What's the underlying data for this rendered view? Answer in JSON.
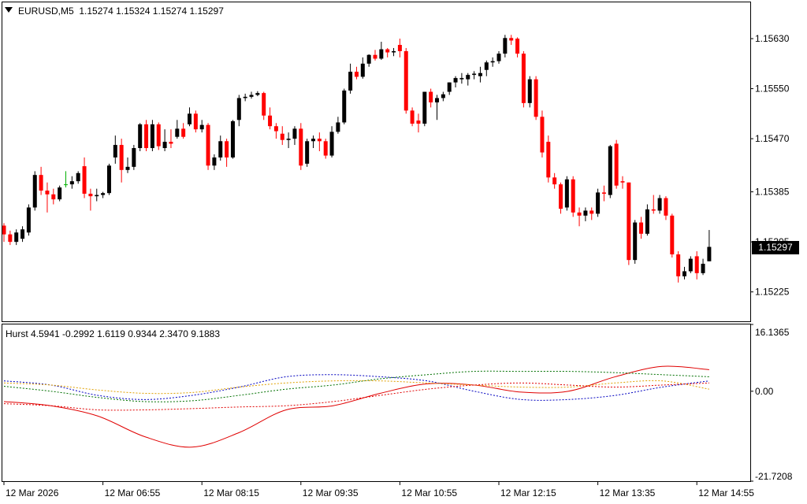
{
  "header": {
    "symbol_timeframe": "EURUSD,M5",
    "ohlc": "1.15274 1.15324 1.15274 1.15297",
    "indicator_label": "Hurst 4.5941 -0.2992 1.6119 0.9344 2.3470 9.1883"
  },
  "price_box": {
    "value": "1.15297",
    "number": 1.15297
  },
  "colors": {
    "bull": "#000000",
    "bear": "#ff0000",
    "doji": "#00b000",
    "grid_frame": "#000000"
  },
  "chart_data": [
    {
      "type": "candlestick",
      "title": "EURUSD,M5",
      "y_ticks": [
        "1.15630",
        "1.15550",
        "1.15470",
        "1.15385",
        "1.15305",
        "1.15225"
      ],
      "x_ticks": [
        "12 Mar 2026",
        "12 Mar 06:55",
        "12 Mar 08:15",
        "12 Mar 09:35",
        "12 Mar 10:55",
        "12 Mar 12:15",
        "12 Mar 13:35",
        "12 Mar 14:55"
      ],
      "ylim": [
        1.15178,
        1.15688
      ],
      "candles": [
        [
          1.15331,
          1.15335,
          1.15305,
          1.15317
        ],
        [
          1.15317,
          1.15323,
          1.153,
          1.15305
        ],
        [
          1.15305,
          1.15325,
          1.153,
          1.1532
        ],
        [
          1.1531,
          1.1533,
          1.15305,
          1.15325
        ],
        [
          1.1532,
          1.15365,
          1.15315,
          1.1536
        ],
        [
          1.1536,
          1.15418,
          1.15355,
          1.15412
        ],
        [
          1.15412,
          1.15425,
          1.1538,
          1.15387
        ],
        [
          1.15387,
          1.154,
          1.15352,
          1.15381
        ],
        [
          1.15381,
          1.1539,
          1.15365,
          1.15373
        ],
        [
          1.15373,
          1.15395,
          1.1537,
          1.15392
        ],
        [
          1.15397,
          1.15418,
          1.15392,
          1.15397
        ],
        [
          1.15397,
          1.1541,
          1.1539,
          1.15402
        ],
        [
          1.15402,
          1.15418,
          1.15398,
          1.15415
        ],
        [
          1.15426,
          1.1544,
          1.15375,
          1.15382
        ],
        [
          1.15382,
          1.1539,
          1.15355,
          1.15378
        ],
        [
          1.15378,
          1.1539,
          1.1537,
          1.1538
        ],
        [
          1.1538,
          1.15385,
          1.15375,
          1.15383
        ],
        [
          1.15383,
          1.1543,
          1.1538,
          1.15427
        ],
        [
          1.1544,
          1.15475,
          1.1543,
          1.1546
        ],
        [
          1.1546,
          1.1547,
          1.154,
          1.1542
        ],
        [
          1.1542,
          1.1544,
          1.15415,
          1.15425
        ],
        [
          1.15425,
          1.1546,
          1.1542,
          1.15455
        ],
        [
          1.15455,
          1.15495,
          1.1545,
          1.15493
        ],
        [
          1.15493,
          1.155,
          1.1545,
          1.15455
        ],
        [
          1.15455,
          1.155,
          1.1545,
          1.15493
        ],
        [
          1.15493,
          1.15496,
          1.15452,
          1.15458
        ],
        [
          1.15455,
          1.15485,
          1.1545,
          1.15465
        ],
        [
          1.15465,
          1.15485,
          1.15455,
          1.15462
        ],
        [
          1.15473,
          1.155,
          1.1547,
          1.15486
        ],
        [
          1.15486,
          1.15495,
          1.1547,
          1.15473
        ],
        [
          1.15493,
          1.1552,
          1.1549,
          1.1551
        ],
        [
          1.1551,
          1.15515,
          1.1548,
          1.15485
        ],
        [
          1.15485,
          1.155,
          1.1548,
          1.15492
        ],
        [
          1.15492,
          1.15495,
          1.1542,
          1.15427
        ],
        [
          1.15427,
          1.15445,
          1.1542,
          1.1544
        ],
        [
          1.1544,
          1.15475,
          1.15435,
          1.15466
        ],
        [
          1.15466,
          1.1547,
          1.15425,
          1.1544
        ],
        [
          1.1544,
          1.155,
          1.15438,
          1.15498
        ],
        [
          1.155,
          1.1554,
          1.1549,
          1.15535
        ],
        [
          1.15535,
          1.15542,
          1.1553,
          1.15537
        ],
        [
          1.15537,
          1.15545,
          1.15534,
          1.1554
        ],
        [
          1.1554,
          1.15546,
          1.15538,
          1.15543
        ],
        [
          1.15543,
          1.15545,
          1.155,
          1.15507
        ],
        [
          1.15507,
          1.1552,
          1.15485,
          1.1549
        ],
        [
          1.1549,
          1.15495,
          1.1547,
          1.15482
        ],
        [
          1.15478,
          1.1549,
          1.1546,
          1.15468
        ],
        [
          1.15468,
          1.1548,
          1.15455,
          1.1547
        ],
        [
          1.1547,
          1.1549,
          1.1546,
          1.15486
        ],
        [
          1.15486,
          1.15495,
          1.1542,
          1.15427
        ],
        [
          1.1543,
          1.1547,
          1.15425,
          1.15466
        ],
        [
          1.15466,
          1.15475,
          1.15455,
          1.1547
        ],
        [
          1.1547,
          1.1548,
          1.1545,
          1.15466
        ],
        [
          1.15466,
          1.1547,
          1.15438,
          1.15443
        ],
        [
          1.15443,
          1.1549,
          1.1544,
          1.15481
        ],
        [
          1.15481,
          1.15505,
          1.15478,
          1.15496
        ],
        [
          1.15496,
          1.1555,
          1.15493,
          1.15547
        ],
        [
          1.15547,
          1.1559,
          1.15542,
          1.15577
        ],
        [
          1.15577,
          1.15585,
          1.15565,
          1.15569
        ],
        [
          1.15569,
          1.156,
          1.15566,
          1.1559
        ],
        [
          1.1559,
          1.15605,
          1.15585,
          1.15604
        ],
        [
          1.15604,
          1.15612,
          1.15595,
          1.15598
        ],
        [
          1.15598,
          1.15625,
          1.15596,
          1.15613
        ],
        [
          1.15613,
          1.15615,
          1.156,
          1.15608
        ],
        [
          1.15608,
          1.15615,
          1.15602,
          1.1561
        ],
        [
          1.1562,
          1.1563,
          1.156,
          1.1561
        ],
        [
          1.1561,
          1.15615,
          1.1551,
          1.15515
        ],
        [
          1.15515,
          1.1552,
          1.1549,
          1.15494
        ],
        [
          1.15499,
          1.1551,
          1.1548,
          1.15494
        ],
        [
          1.15494,
          1.15545,
          1.1549,
          1.15545
        ],
        [
          1.15545,
          1.1555,
          1.1552,
          1.15528
        ],
        [
          1.15528,
          1.1554,
          1.155,
          1.15535
        ],
        [
          1.15535,
          1.15545,
          1.1553,
          1.15541
        ],
        [
          1.15545,
          1.1556,
          1.1554,
          1.1556
        ],
        [
          1.1556,
          1.1557,
          1.15552,
          1.15567
        ],
        [
          1.15565,
          1.15575,
          1.15558,
          1.15567
        ],
        [
          1.15565,
          1.15575,
          1.15555,
          1.15572
        ],
        [
          1.15572,
          1.15578,
          1.15565,
          1.15574
        ],
        [
          1.1557,
          1.15585,
          1.1556,
          1.15575
        ],
        [
          1.1558,
          1.15595,
          1.1557,
          1.15592
        ],
        [
          1.15592,
          1.156,
          1.15585,
          1.15594
        ],
        [
          1.15594,
          1.1561,
          1.1559,
          1.15606
        ],
        [
          1.15606,
          1.15636,
          1.156,
          1.15631
        ],
        [
          1.15631,
          1.15636,
          1.1562,
          1.15627
        ],
        [
          1.1563,
          1.15632,
          1.156,
          1.15606
        ],
        [
          1.15606,
          1.1561,
          1.1552,
          1.15527
        ],
        [
          1.15527,
          1.1557,
          1.1552,
          1.15565
        ],
        [
          1.15565,
          1.1557,
          1.155,
          1.15505
        ],
        [
          1.15505,
          1.15515,
          1.1544,
          1.15448
        ],
        [
          1.15465,
          1.15475,
          1.154,
          1.15408
        ],
        [
          1.15408,
          1.15415,
          1.1539,
          1.15397
        ],
        [
          1.15397,
          1.154,
          1.1535,
          1.15358
        ],
        [
          1.1536,
          1.1541,
          1.15355,
          1.15405
        ],
        [
          1.15405,
          1.1541,
          1.15345,
          1.15352
        ],
        [
          1.15352,
          1.1536,
          1.1533,
          1.15347
        ],
        [
          1.15347,
          1.1536,
          1.15338,
          1.15355
        ],
        [
          1.15355,
          1.1536,
          1.1534,
          1.1535
        ],
        [
          1.1535,
          1.1539,
          1.15345,
          1.15384
        ],
        [
          1.15384,
          1.15395,
          1.1537,
          1.15382
        ],
        [
          1.1538,
          1.1546,
          1.15375,
          1.15458
        ],
        [
          1.15462,
          1.15468,
          1.1539,
          1.15395
        ],
        [
          1.15402,
          1.1541,
          1.1539,
          1.154
        ],
        [
          1.154,
          1.154,
          1.15268,
          1.15276
        ],
        [
          1.15276,
          1.1534,
          1.1527,
          1.15336
        ],
        [
          1.15336,
          1.15345,
          1.1531,
          1.15318
        ],
        [
          1.15318,
          1.15365,
          1.15315,
          1.15357
        ],
        [
          1.15357,
          1.1538,
          1.1535,
          1.15355
        ],
        [
          1.15355,
          1.1538,
          1.1535,
          1.15375
        ],
        [
          1.15375,
          1.15378,
          1.1534,
          1.15347
        ],
        [
          1.15347,
          1.1535,
          1.1528,
          1.15285
        ],
        [
          1.15285,
          1.1529,
          1.1524,
          1.1525
        ],
        [
          1.1525,
          1.15265,
          1.15245,
          1.15258
        ],
        [
          1.15258,
          1.15282,
          1.15255,
          1.15278
        ],
        [
          1.15282,
          1.1529,
          1.15245,
          1.15255
        ],
        [
          1.15255,
          1.15278,
          1.15252,
          1.1527
        ],
        [
          1.15274,
          1.15324,
          1.15274,
          1.15297
        ]
      ]
    },
    {
      "type": "line",
      "title": "Hurst 4.5941 -0.2992 1.6119 0.9344 2.3470 9.1883",
      "y_ticks": [
        "16.1365",
        "0.00",
        "-21.7208"
      ],
      "ylim": [
        -21.7208,
        16.1365
      ],
      "x": [
        0,
        8,
        16,
        24,
        32,
        40,
        48,
        56,
        64,
        72,
        80,
        88,
        96,
        104,
        112,
        120
      ],
      "series": [
        {
          "style": "solid",
          "color": "#e00000",
          "values": [
            -2.5,
            -3.5,
            -6.0,
            -11.0,
            -13.5,
            -10.0,
            -4.5,
            -3.5,
            -0.5,
            1.8,
            1.5,
            -0.2,
            0.0,
            3.5,
            6.0,
            5.2
          ]
        },
        {
          "style": "dotted",
          "color": "#0000c0",
          "values": [
            2.5,
            1.5,
            -1.0,
            -2.0,
            -1.0,
            1.0,
            3.5,
            4.0,
            3.5,
            2.5,
            0.0,
            -2.0,
            -2.0,
            -1.0,
            1.0,
            2.5
          ]
        },
        {
          "style": "dotted",
          "color": "#007000",
          "values": [
            1.2,
            0.0,
            -1.5,
            -2.5,
            -2.3,
            -1.0,
            0.5,
            1.5,
            3.0,
            4.0,
            4.8,
            4.8,
            4.8,
            4.5,
            4.0,
            3.5
          ]
        },
        {
          "style": "dotted",
          "color": "#e0a000",
          "values": [
            2.0,
            1.5,
            0.3,
            -0.5,
            -0.3,
            1.0,
            2.0,
            2.5,
            2.5,
            2.0,
            1.5,
            1.0,
            1.0,
            2.0,
            2.5,
            0.5
          ]
        },
        {
          "style": "dotted",
          "color": "#e00000",
          "values": [
            -3.0,
            -3.5,
            -4.5,
            -4.5,
            -4.2,
            -3.8,
            -3.5,
            -2.5,
            -1.0,
            0.5,
            1.5,
            2.0,
            1.5,
            1.0,
            1.5,
            2.0
          ]
        }
      ]
    }
  ]
}
